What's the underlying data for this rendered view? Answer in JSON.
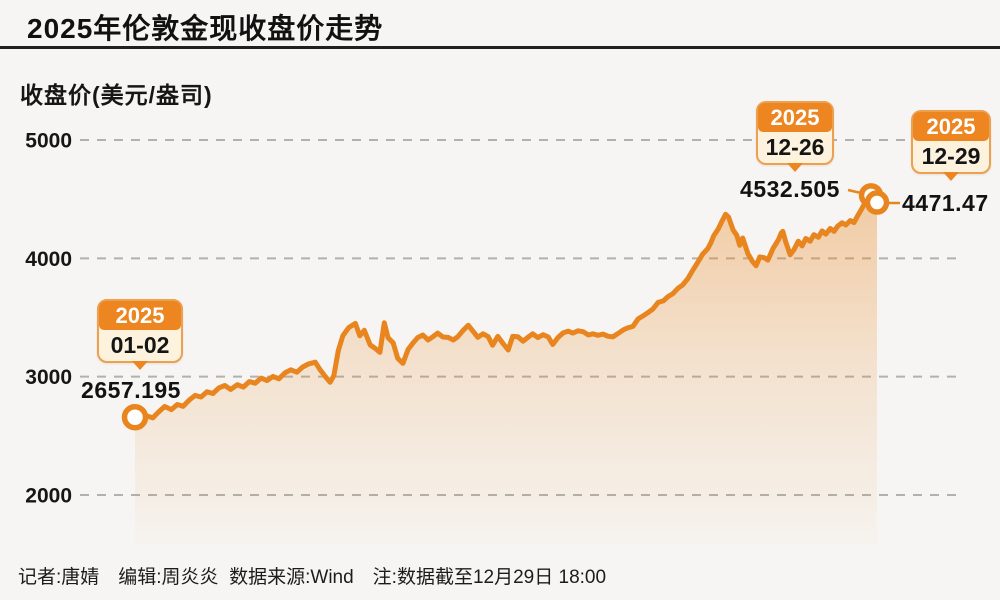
{
  "title": "2025年伦敦金现收盘价走势",
  "y_axis_label": "收盘价(美元/盎司)",
  "footer": "记者:唐婧　编辑:周炎炎  数据来源:Wind　注:数据截至12月29日 18:00",
  "colors": {
    "accent": "#e8851f",
    "callout_header": "#ed8621",
    "callout_body": "#fcf2de",
    "callout_border": "#eda04e",
    "grid": "#b3b1ad",
    "background": "#f6f5f3",
    "text": "#141414"
  },
  "annotations": {
    "start": {
      "year": "2025",
      "date": "01-02",
      "value": "2657.195"
    },
    "peak": {
      "year": "2025",
      "date": "12-26",
      "value": "4532.505"
    },
    "latest": {
      "year": "2025",
      "date": "12-29",
      "value": "4471.47"
    }
  },
  "chart_data": {
    "type": "area",
    "title": "2025年伦敦金现收盘价走势",
    "ylabel": "收盘价(美元/盎司)",
    "series_name": "伦敦金现收盘价",
    "y_ticks": [
      5000,
      4000,
      3000,
      2000
    ],
    "ylim": [
      1800,
      5100
    ],
    "x_range": [
      "2025-01-02",
      "2025-12-29"
    ],
    "grid": "horizontal dashed",
    "legend": "none",
    "annotated_points": [
      {
        "f": 0.0,
        "date": "2025-01-02",
        "value": 2657.195
      },
      {
        "f": 0.992,
        "date": "2025-12-26",
        "value": 4532.505
      },
      {
        "f": 1.0,
        "date": "2025-12-29",
        "value": 4471.47
      }
    ],
    "points": [
      [
        0.0,
        2657.195
      ],
      [
        0.008,
        2630
      ],
      [
        0.016,
        2668
      ],
      [
        0.024,
        2652
      ],
      [
        0.032,
        2702
      ],
      [
        0.04,
        2748
      ],
      [
        0.049,
        2722
      ],
      [
        0.057,
        2765
      ],
      [
        0.065,
        2750
      ],
      [
        0.073,
        2802
      ],
      [
        0.081,
        2842
      ],
      [
        0.089,
        2828
      ],
      [
        0.097,
        2872
      ],
      [
        0.105,
        2858
      ],
      [
        0.113,
        2905
      ],
      [
        0.121,
        2925
      ],
      [
        0.129,
        2892
      ],
      [
        0.138,
        2932
      ],
      [
        0.146,
        2912
      ],
      [
        0.154,
        2958
      ],
      [
        0.162,
        2945
      ],
      [
        0.17,
        2988
      ],
      [
        0.178,
        2968
      ],
      [
        0.186,
        3002
      ],
      [
        0.194,
        2982
      ],
      [
        0.202,
        3032
      ],
      [
        0.21,
        3058
      ],
      [
        0.218,
        3038
      ],
      [
        0.226,
        3082
      ],
      [
        0.234,
        3108
      ],
      [
        0.243,
        3122
      ],
      [
        0.249,
        3062
      ],
      [
        0.256,
        3005
      ],
      [
        0.263,
        2952
      ],
      [
        0.268,
        3010
      ],
      [
        0.274,
        3220
      ],
      [
        0.28,
        3345
      ],
      [
        0.288,
        3415
      ],
      [
        0.297,
        3450
      ],
      [
        0.303,
        3345
      ],
      [
        0.309,
        3392
      ],
      [
        0.317,
        3268
      ],
      [
        0.323,
        3242
      ],
      [
        0.33,
        3205
      ],
      [
        0.336,
        3455
      ],
      [
        0.341,
        3330
      ],
      [
        0.348,
        3285
      ],
      [
        0.354,
        3155
      ],
      [
        0.361,
        3112
      ],
      [
        0.368,
        3230
      ],
      [
        0.375,
        3288
      ],
      [
        0.381,
        3330
      ],
      [
        0.388,
        3352
      ],
      [
        0.395,
        3310
      ],
      [
        0.402,
        3340
      ],
      [
        0.408,
        3368
      ],
      [
        0.415,
        3335
      ],
      [
        0.422,
        3332
      ],
      [
        0.429,
        3310
      ],
      [
        0.435,
        3338
      ],
      [
        0.442,
        3390
      ],
      [
        0.449,
        3435
      ],
      [
        0.456,
        3380
      ],
      [
        0.462,
        3333
      ],
      [
        0.469,
        3362
      ],
      [
        0.476,
        3338
      ],
      [
        0.482,
        3265
      ],
      [
        0.489,
        3340
      ],
      [
        0.496,
        3280
      ],
      [
        0.503,
        3225
      ],
      [
        0.509,
        3340
      ],
      [
        0.516,
        3337
      ],
      [
        0.523,
        3300
      ],
      [
        0.53,
        3335
      ],
      [
        0.536,
        3362
      ],
      [
        0.543,
        3330
      ],
      [
        0.55,
        3355
      ],
      [
        0.557,
        3335
      ],
      [
        0.563,
        3272
      ],
      [
        0.57,
        3330
      ],
      [
        0.577,
        3370
      ],
      [
        0.584,
        3385
      ],
      [
        0.59,
        3368
      ],
      [
        0.597,
        3388
      ],
      [
        0.604,
        3380
      ],
      [
        0.611,
        3352
      ],
      [
        0.617,
        3362
      ],
      [
        0.624,
        3350
      ],
      [
        0.631,
        3360
      ],
      [
        0.637,
        3342
      ],
      [
        0.644,
        3336
      ],
      [
        0.651,
        3365
      ],
      [
        0.658,
        3395
      ],
      [
        0.664,
        3412
      ],
      [
        0.671,
        3425
      ],
      [
        0.678,
        3488
      ],
      [
        0.685,
        3515
      ],
      [
        0.691,
        3540
      ],
      [
        0.698,
        3572
      ],
      [
        0.705,
        3628
      ],
      [
        0.712,
        3640
      ],
      [
        0.718,
        3675
      ],
      [
        0.725,
        3702
      ],
      [
        0.732,
        3748
      ],
      [
        0.738,
        3775
      ],
      [
        0.745,
        3828
      ],
      [
        0.752,
        3902
      ],
      [
        0.759,
        3972
      ],
      [
        0.765,
        4035
      ],
      [
        0.772,
        4082
      ],
      [
        0.776,
        4130
      ],
      [
        0.78,
        4192
      ],
      [
        0.786,
        4248
      ],
      [
        0.791,
        4312
      ],
      [
        0.796,
        4372
      ],
      [
        0.8,
        4348
      ],
      [
        0.806,
        4240
      ],
      [
        0.811,
        4195
      ],
      [
        0.815,
        4110
      ],
      [
        0.819,
        4172
      ],
      [
        0.826,
        4040
      ],
      [
        0.832,
        3975
      ],
      [
        0.837,
        3938
      ],
      [
        0.842,
        4012
      ],
      [
        0.848,
        4005
      ],
      [
        0.853,
        3985
      ],
      [
        0.86,
        4085
      ],
      [
        0.867,
        4155
      ],
      [
        0.871,
        4215
      ],
      [
        0.873,
        4228
      ],
      [
        0.877,
        4140
      ],
      [
        0.883,
        4030
      ],
      [
        0.888,
        4072
      ],
      [
        0.894,
        4145
      ],
      [
        0.899,
        4105
      ],
      [
        0.904,
        4168
      ],
      [
        0.91,
        4145
      ],
      [
        0.915,
        4200
      ],
      [
        0.921,
        4178
      ],
      [
        0.926,
        4232
      ],
      [
        0.931,
        4205
      ],
      [
        0.937,
        4252
      ],
      [
        0.942,
        4228
      ],
      [
        0.947,
        4272
      ],
      [
        0.953,
        4300
      ],
      [
        0.958,
        4282
      ],
      [
        0.964,
        4320
      ],
      [
        0.969,
        4302
      ],
      [
        0.974,
        4360
      ],
      [
        0.98,
        4425
      ],
      [
        0.985,
        4485
      ],
      [
        0.992,
        4532.505
      ],
      [
        1.0,
        4471.47
      ]
    ]
  }
}
